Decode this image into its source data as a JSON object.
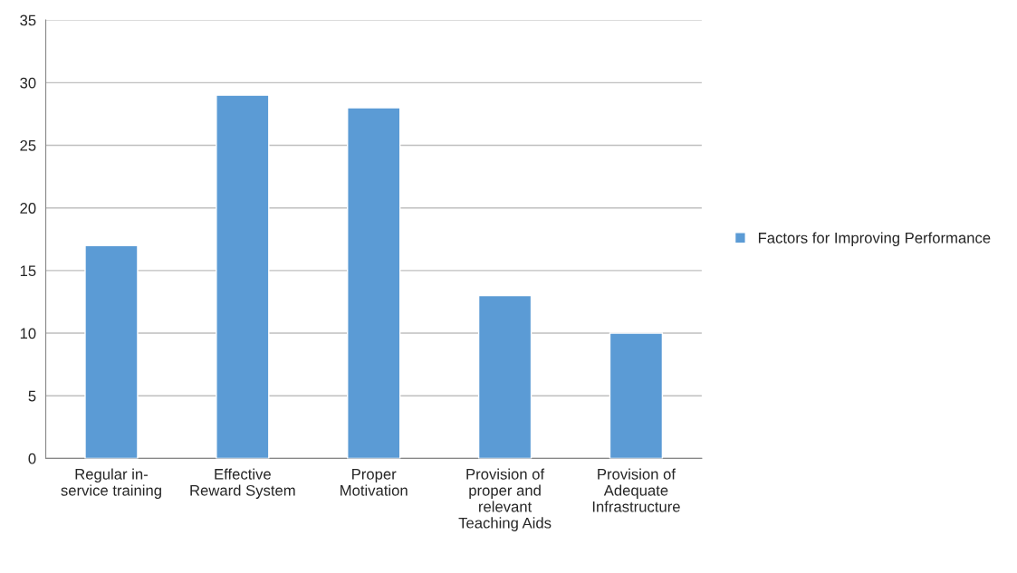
{
  "chart_data": {
    "type": "bar",
    "categories": [
      "Regular in-\nservice training",
      "Effective\nReward System",
      "Proper\nMotivation",
      "Provision of\nproper and\nrelevant\nTeaching Aids",
      "Provision of\nAdequate\nInfrastructure"
    ],
    "series": [
      {
        "name": "Factors for Improving Performance",
        "color": "#5b9bd5",
        "values": [
          17,
          29,
          28,
          13,
          10
        ]
      }
    ],
    "ylim": [
      0,
      35
    ],
    "yticks": [
      0,
      5,
      10,
      15,
      20,
      25,
      30,
      35
    ],
    "grid": "y",
    "legend": "right"
  }
}
